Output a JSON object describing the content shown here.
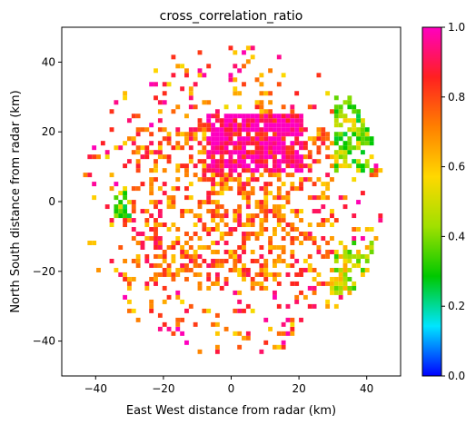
{
  "chart_data": {
    "type": "heatmap",
    "title": "cross_correlation_ratio",
    "xlabel": "East West distance from radar (km)",
    "ylabel": "North South distance from radar (km)",
    "xlim": [
      -50,
      50
    ],
    "ylim": [
      -50,
      50
    ],
    "x_ticks": [
      -40,
      -20,
      0,
      20,
      40
    ],
    "y_ticks": [
      -40,
      -20,
      0,
      20,
      40
    ],
    "x_tick_labels": [
      "−40",
      "−20",
      "0",
      "20",
      "40"
    ],
    "y_tick_labels": [
      "−40",
      "−20",
      "0",
      "20",
      "40"
    ],
    "grid": false,
    "colorbar": {
      "vmin": 0.0,
      "vmax": 1.0,
      "ticks": [
        0.0,
        0.2,
        0.4,
        0.6,
        0.8,
        1.0
      ],
      "tick_labels": [
        "0.0",
        "0.2",
        "0.4",
        "0.6",
        "0.8",
        "1.0"
      ],
      "colormap_stops": [
        "#0000ff",
        "#00e5ff",
        "#00c800",
        "#a0e000",
        "#ffd800",
        "#ff8000",
        "#ff2020",
        "#ff00c0"
      ]
    },
    "radar_center": [
      0,
      0
    ],
    "max_range_km": 45,
    "regions": [
      {
        "feature": "high-correlation core north",
        "x_range": [
          -8,
          20
        ],
        "y_range": [
          8,
          25
        ],
        "value": 0.97
      },
      {
        "feature": "mixed ring near radar",
        "x_range": [
          -30,
          30
        ],
        "y_range": [
          -25,
          20
        ],
        "value": 0.75
      },
      {
        "feature": "low-correlation patch east",
        "x_range": [
          30,
          42
        ],
        "y_range": [
          8,
          30
        ],
        "value": 0.42
      },
      {
        "feature": "low-correlation patch southeast",
        "x_range": [
          28,
          42
        ],
        "y_range": [
          -28,
          -12
        ],
        "value": 0.48
      },
      {
        "feature": "low-correlation patch west",
        "x_range": [
          -35,
          -25
        ],
        "y_range": [
          -5,
          2
        ],
        "value": 0.4
      },
      {
        "feature": "scattered clutter outer ring",
        "x_range": [
          -45,
          45
        ],
        "y_range": [
          -43,
          44
        ],
        "value": 0.9
      }
    ]
  }
}
